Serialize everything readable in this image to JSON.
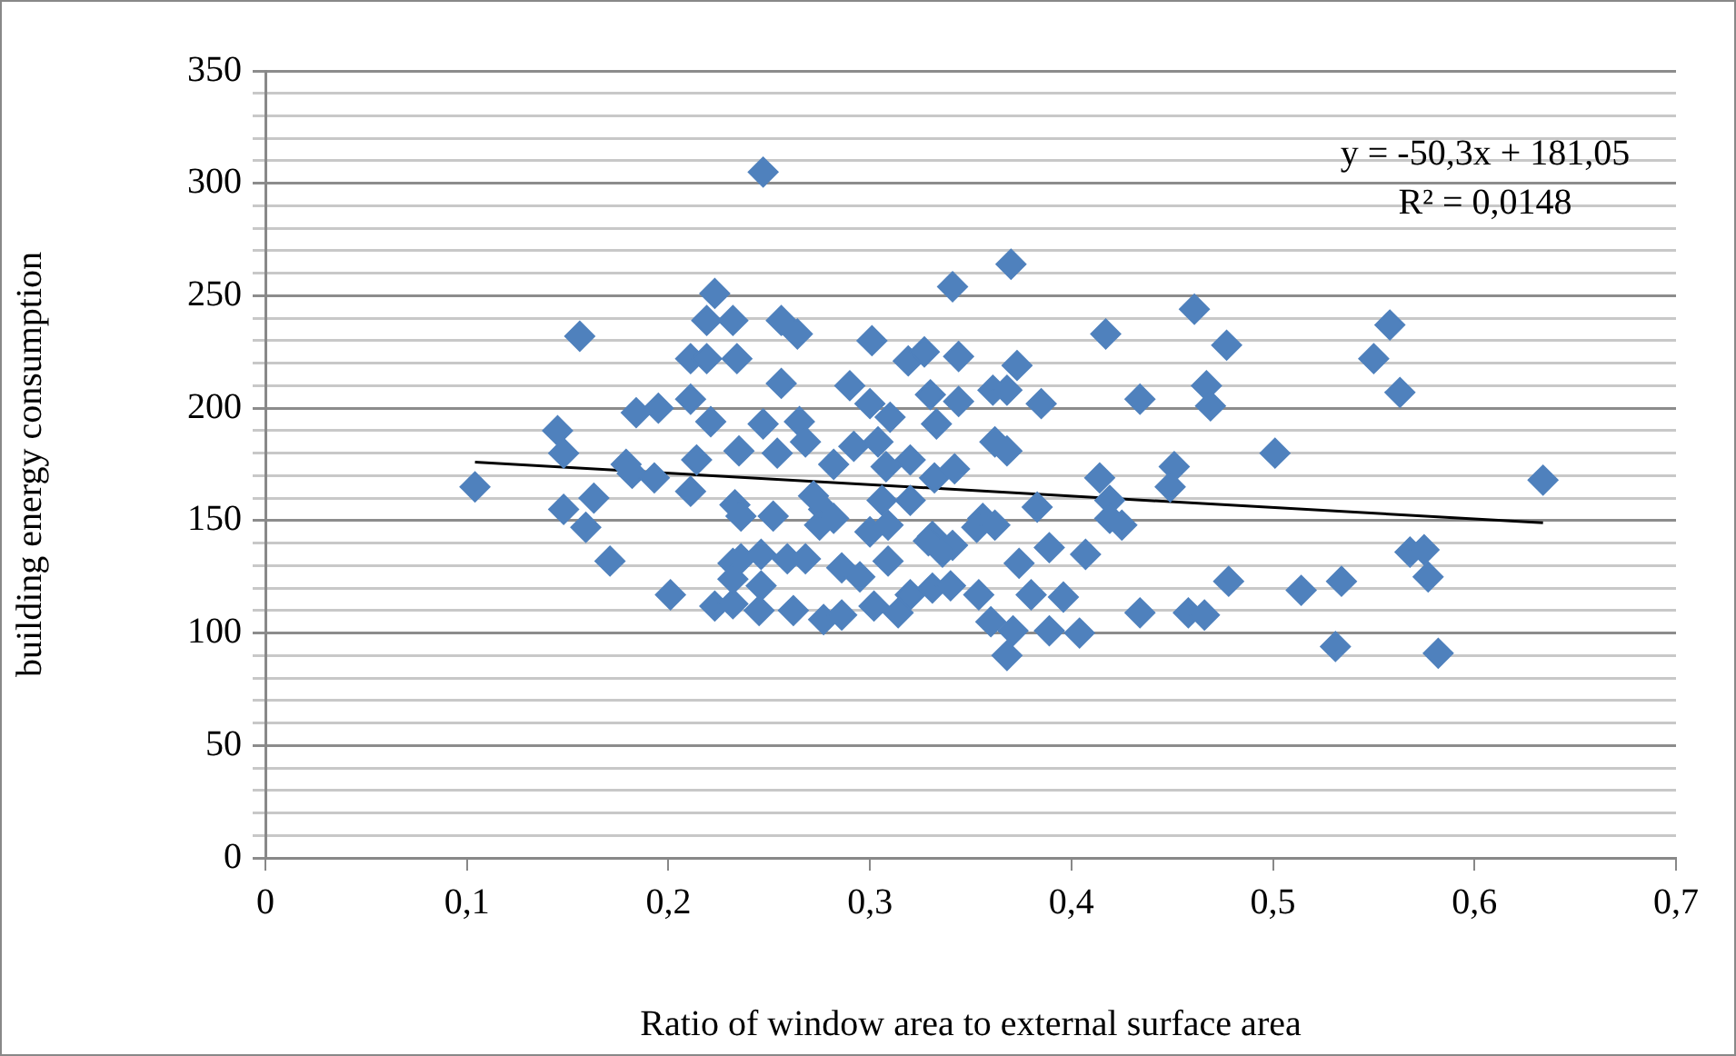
{
  "chart_data": {
    "type": "scatter",
    "xlabel": "Ratio of window area to external surface area",
    "ylabel": "building energy consumption",
    "xlim": [
      0,
      0.7
    ],
    "xticks": [
      {
        "value": 0,
        "label": "0"
      },
      {
        "value": 0.1,
        "label": "0,1"
      },
      {
        "value": 0.2,
        "label": "0,2"
      },
      {
        "value": 0.3,
        "label": "0,3"
      },
      {
        "value": 0.4,
        "label": "0,4"
      },
      {
        "value": 0.5,
        "label": "0,5"
      },
      {
        "value": 0.6,
        "label": "0,6"
      },
      {
        "value": 0.7,
        "label": "0,7"
      }
    ],
    "ylim": [
      0,
      350
    ],
    "yticks": [
      0,
      {
        "value": 10,
        "label": null
      },
      {
        "value": 20,
        "label": null
      },
      {
        "value": 30,
        "label": null
      },
      {
        "value": 40,
        "label": null
      },
      50,
      {
        "value": 60,
        "label": null
      },
      {
        "value": 70,
        "label": null
      },
      {
        "value": 80,
        "label": null
      },
      {
        "value": 90,
        "label": null
      },
      100,
      {
        "value": 110,
        "label": null
      },
      {
        "value": 120,
        "label": null
      },
      {
        "value": 130,
        "label": null
      },
      {
        "value": 140,
        "label": null
      },
      150,
      {
        "value": 160,
        "label": null
      },
      {
        "value": 170,
        "label": null
      },
      {
        "value": 180,
        "label": null
      },
      {
        "value": 190,
        "label": null
      },
      200,
      {
        "value": 210,
        "label": null
      },
      {
        "value": 220,
        "label": null
      },
      {
        "value": 230,
        "label": null
      },
      {
        "value": 240,
        "label": null
      },
      250,
      {
        "value": 260,
        "label": null
      },
      {
        "value": 270,
        "label": null
      },
      {
        "value": 280,
        "label": null
      },
      {
        "value": 290,
        "label": null
      },
      300,
      {
        "value": 310,
        "label": null
      },
      {
        "value": 320,
        "label": null
      },
      {
        "value": 330,
        "label": null
      },
      {
        "value": 340,
        "label": null
      },
      350
    ],
    "grid": "y",
    "legend": false,
    "marker": "diamond",
    "series": [
      {
        "type": "scatter",
        "color": "#4f81bd",
        "x": [
          0.104,
          0.145,
          0.148,
          0.148,
          0.156,
          0.163,
          0.159,
          0.171,
          0.179,
          0.182,
          0.193,
          0.184,
          0.195,
          0.211,
          0.221,
          0.214,
          0.211,
          0.223,
          0.219,
          0.232,
          0.211,
          0.219,
          0.234,
          0.235,
          0.233,
          0.201,
          0.223,
          0.232,
          0.232,
          0.232,
          0.247,
          0.37,
          0.341,
          0.461,
          0.417,
          0.256,
          0.264,
          0.301,
          0.319,
          0.327,
          0.344,
          0.373,
          0.256,
          0.29,
          0.3,
          0.31,
          0.33,
          0.333,
          0.344,
          0.361,
          0.368,
          0.385,
          0.434,
          0.467,
          0.469,
          0.247,
          0.265,
          0.268,
          0.254,
          0.292,
          0.282,
          0.304,
          0.308,
          0.32,
          0.332,
          0.342,
          0.362,
          0.368,
          0.414,
          0.451,
          0.449,
          0.419,
          0.252,
          0.272,
          0.277,
          0.306,
          0.32,
          0.383,
          0.356,
          0.236,
          0.275,
          0.282,
          0.3,
          0.309,
          0.331,
          0.341,
          0.353,
          0.362,
          0.419,
          0.425,
          0.236,
          0.246,
          0.259,
          0.268,
          0.286,
          0.295,
          0.309,
          0.329,
          0.336,
          0.374,
          0.389,
          0.407,
          0.246,
          0.245,
          0.262,
          0.277,
          0.286,
          0.302,
          0.314,
          0.32,
          0.331,
          0.34,
          0.354,
          0.38,
          0.396,
          0.36,
          0.371,
          0.389,
          0.404,
          0.368,
          0.434,
          0.458,
          0.477,
          0.501,
          0.558,
          0.55,
          0.563,
          0.634,
          0.466,
          0.478,
          0.514,
          0.534,
          0.531,
          0.568,
          0.575,
          0.577,
          0.582
        ],
        "values": [
          165,
          190,
          180,
          155,
          232,
          160,
          147,
          132,
          175,
          171,
          169,
          198,
          200,
          204,
          194,
          177,
          163,
          251,
          239,
          239,
          222,
          222,
          222,
          181,
          157,
          117,
          112,
          113,
          131,
          124,
          305,
          264,
          254,
          244,
          233,
          239,
          233,
          230,
          221,
          225,
          223,
          219,
          211,
          210,
          202,
          196,
          206,
          193,
          203,
          208,
          208,
          202,
          204,
          210,
          201,
          193,
          194,
          185,
          180,
          183,
          175,
          185,
          174,
          177,
          169,
          173,
          185,
          181,
          169,
          174,
          165,
          159,
          152,
          161,
          155,
          159,
          159,
          156,
          151,
          152,
          148,
          151,
          145,
          148,
          143,
          139,
          147,
          148,
          151,
          148,
          133,
          135,
          133,
          133,
          129,
          125,
          132,
          141,
          136,
          131,
          138,
          135,
          121,
          110,
          110,
          106,
          108,
          112,
          109,
          117,
          120,
          121,
          117,
          117,
          116,
          105,
          101,
          101,
          100,
          90,
          109,
          109,
          228,
          180,
          237,
          222,
          207,
          168,
          108,
          123,
          119,
          123,
          94,
          136,
          137,
          125,
          91
        ]
      },
      {
        "type": "line",
        "color": "#000000",
        "x": [
          0.104,
          0.634
        ],
        "values": [
          176,
          149
        ],
        "marker": "none"
      }
    ],
    "annotations": [
      "y = -50,3x + 181,05",
      "R² = 0,0148"
    ]
  }
}
